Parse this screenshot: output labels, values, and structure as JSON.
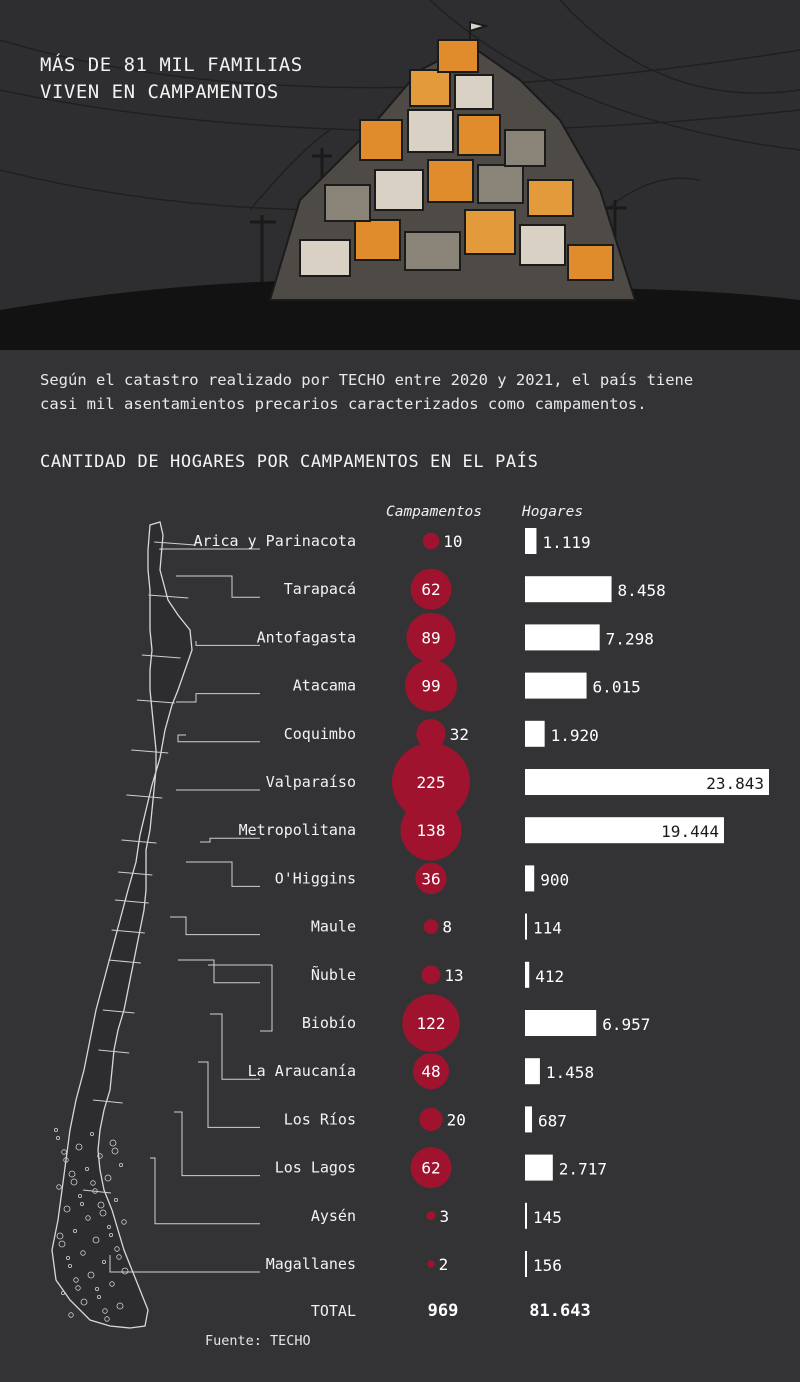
{
  "header": {
    "title_lines": [
      "MÁS DE 81 MIL FAMILIAS",
      "VIVEN EN CAMPAMENTOS"
    ]
  },
  "intro": {
    "lines": [
      "Según el catastro realizado por TECHO entre 2020 y 2021, el país tiene",
      "casi mil asentamientos precarios caracterizados como campamentos."
    ]
  },
  "chart_title": "CANTIDAD DE HOGARES POR CAMPAMENTOS EN EL PAÍS",
  "source": "Fuente: TECHO",
  "colors": {
    "background": "#333336",
    "bubble": "#a0132e",
    "bar": "#ffffff",
    "text": "#ffffff"
  },
  "chart_data": {
    "type": "table",
    "columns": [
      "Campamentos",
      "Hogares"
    ],
    "encoding": {
      "Campamentos": "bubble-area",
      "Hogares": "bar-length"
    },
    "rows": [
      {
        "region": "Arica y Parinacota",
        "campamentos": 10,
        "campamentos_label": "10",
        "hogares": 1119,
        "hogares_label": "1.119"
      },
      {
        "region": "Tarapacá",
        "campamentos": 62,
        "campamentos_label": "62",
        "hogares": 8458,
        "hogares_label": "8.458"
      },
      {
        "region": "Antofagasta",
        "campamentos": 89,
        "campamentos_label": "89",
        "hogares": 7298,
        "hogares_label": "7.298"
      },
      {
        "region": "Atacama",
        "campamentos": 99,
        "campamentos_label": "99",
        "hogares": 6015,
        "hogares_label": "6.015"
      },
      {
        "region": "Coquimbo",
        "campamentos": 32,
        "campamentos_label": "32",
        "hogares": 1920,
        "hogares_label": "1.920"
      },
      {
        "region": "Valparaíso",
        "campamentos": 225,
        "campamentos_label": "225",
        "hogares": 23843,
        "hogares_label": "23.843"
      },
      {
        "region": "Metropolitana",
        "campamentos": 138,
        "campamentos_label": "138",
        "hogares": 19444,
        "hogares_label": "19.444"
      },
      {
        "region": "O'Higgins",
        "campamentos": 36,
        "campamentos_label": "36",
        "hogares": 900,
        "hogares_label": "900"
      },
      {
        "region": "Maule",
        "campamentos": 8,
        "campamentos_label": "8",
        "hogares": 114,
        "hogares_label": "114"
      },
      {
        "region": "Ñuble",
        "campamentos": 13,
        "campamentos_label": "13",
        "hogares": 412,
        "hogares_label": "412"
      },
      {
        "region": "Biobío",
        "campamentos": 122,
        "campamentos_label": "122",
        "hogares": 6957,
        "hogares_label": "6.957"
      },
      {
        "region": "La Araucanía",
        "campamentos": 48,
        "campamentos_label": "48",
        "hogares": 1458,
        "hogares_label": "1.458"
      },
      {
        "region": "Los Ríos",
        "campamentos": 20,
        "campamentos_label": "20",
        "hogares": 687,
        "hogares_label": "687"
      },
      {
        "region": "Los Lagos",
        "campamentos": 62,
        "campamentos_label": "62",
        "hogares": 2717,
        "hogares_label": "2.717"
      },
      {
        "region": "Aysén",
        "campamentos": 3,
        "campamentos_label": "3",
        "hogares": 145,
        "hogares_label": "145"
      },
      {
        "region": "Magallanes",
        "campamentos": 2,
        "campamentos_label": "2",
        "hogares": 156,
        "hogares_label": "156"
      }
    ],
    "total": {
      "label": "TOTAL",
      "campamentos": 969,
      "campamentos_label": "969",
      "hogares": 81643,
      "hogares_label": "81.643"
    }
  }
}
